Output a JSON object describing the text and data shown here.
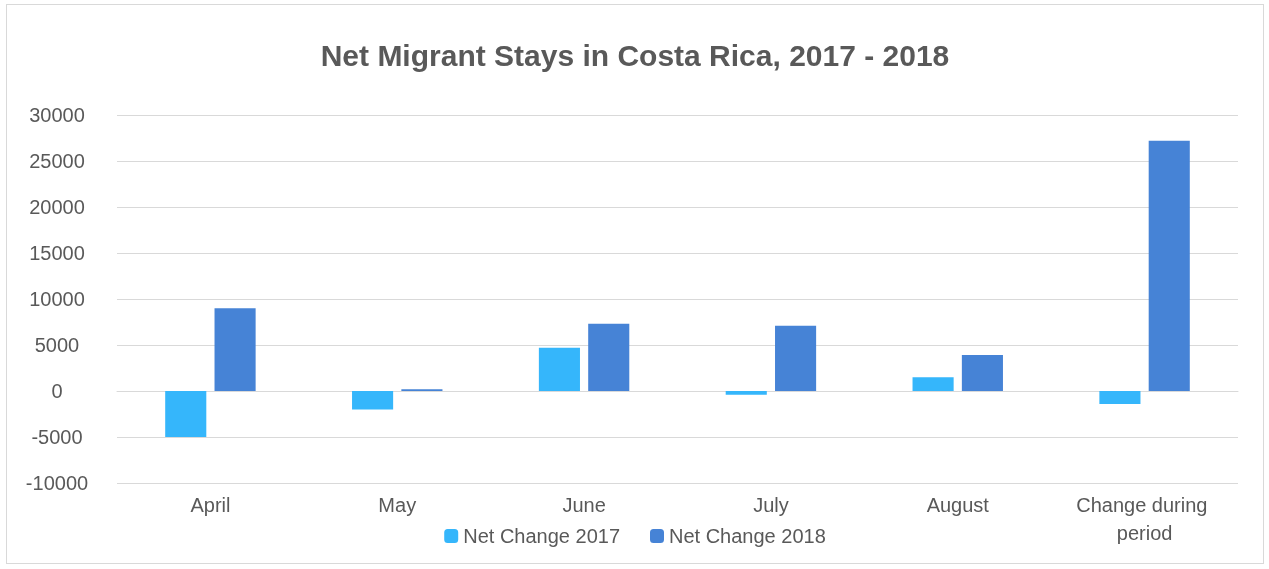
{
  "chart_data": {
    "type": "bar",
    "title": "Net Migrant Stays in Costa Rica, 2017 - 2018",
    "categories": [
      "April",
      "May",
      "June",
      "July",
      "August",
      "Change during period"
    ],
    "series": [
      {
        "name": "Net Change 2017",
        "color": "#35b6fb",
        "values": [
          -5000,
          -2000,
          4700,
          -400,
          1500,
          -1400
        ]
      },
      {
        "name": "Net Change 2018",
        "color": "#4683d6",
        "values": [
          9000,
          200,
          7300,
          7100,
          3900,
          27200
        ]
      }
    ],
    "ylim": [
      -10000,
      30000
    ],
    "yticks": [
      -10000,
      -5000,
      0,
      5000,
      10000,
      15000,
      20000,
      25000,
      30000
    ],
    "grid": "y",
    "legend": "bottom"
  }
}
